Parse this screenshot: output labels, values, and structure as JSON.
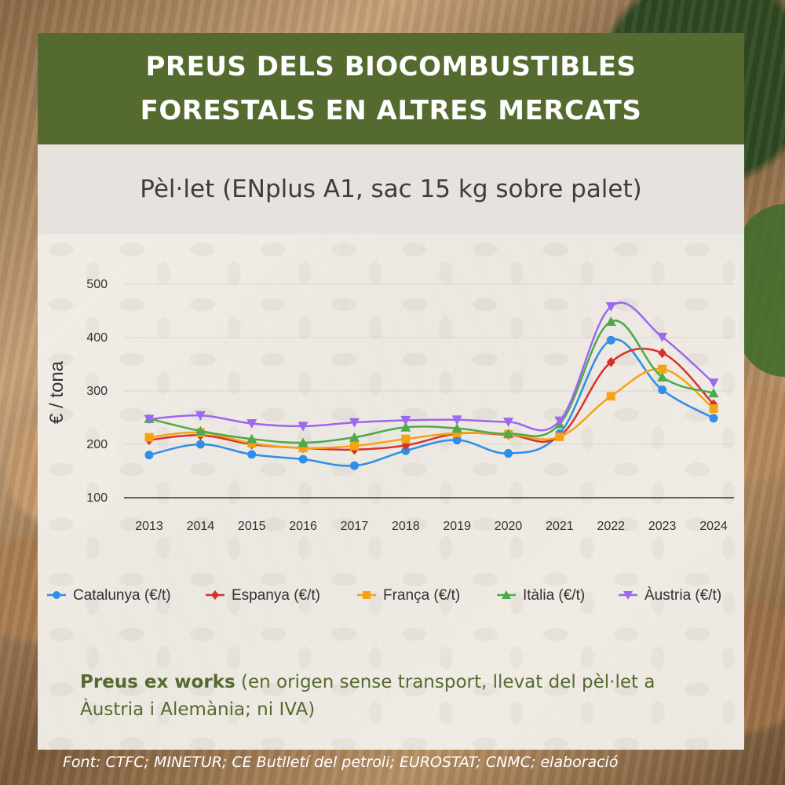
{
  "header": {
    "title_line1": "PREUS DELS BIOCOMBUSTIBLES",
    "title_line2": "FORESTALS EN ALTRES MERCATS"
  },
  "subtitle": "Pèl·let (ENplus A1, sac 15 kg sobre palet)",
  "note": {
    "bold": "Preus ex works",
    "rest": " (en origen sense transport, llevat del pèl·let a Àustria i Alemània; ni IVA)"
  },
  "source": "Font: CTFC; MINETUR; CE Butlletí del petroli; EUROSTAT; CNMC; elaboració",
  "chart_data": {
    "type": "line",
    "title": "Pèl·let (ENplus A1, sac 15 kg sobre palet)",
    "xlabel": "",
    "ylabel": "€ / tona",
    "ylim": [
      100,
      500
    ],
    "yticks": [
      100,
      200,
      300,
      400,
      500
    ],
    "grid": true,
    "legend": "bottom",
    "categories": [
      "2013",
      "2014",
      "2015",
      "2016",
      "2017",
      "2018",
      "2019",
      "2020",
      "2021",
      "2022",
      "2023",
      "2024"
    ],
    "series": [
      {
        "name": "Catalunya (€/t)",
        "color": "#2f8fe6",
        "marker": "circle",
        "values": [
          180,
          200,
          181,
          172,
          160,
          188,
          208,
          183,
          220,
          395,
          302,
          249
        ]
      },
      {
        "name": "Espanya (€/t)",
        "color": "#d8312b",
        "marker": "diamond",
        "values": [
          208,
          217,
          200,
          193,
          190,
          198,
          220,
          218,
          215,
          354,
          371,
          275
        ]
      },
      {
        "name": "França (€/t)",
        "color": "#f5a315",
        "marker": "square",
        "values": [
          213,
          222,
          202,
          193,
          197,
          210,
          221,
          219,
          214,
          290,
          341,
          267
        ]
      },
      {
        "name": "Itàlia (€/t)",
        "color": "#4caa4c",
        "marker": "triangle",
        "values": [
          248,
          225,
          210,
          203,
          213,
          232,
          230,
          220,
          238,
          430,
          326,
          296
        ]
      },
      {
        "name": "Àustria (€/t)",
        "color": "#9b68ee",
        "marker": "triangle-down",
        "values": [
          247,
          254,
          239,
          234,
          241,
          245,
          246,
          242,
          244,
          458,
          401,
          315
        ]
      }
    ]
  }
}
